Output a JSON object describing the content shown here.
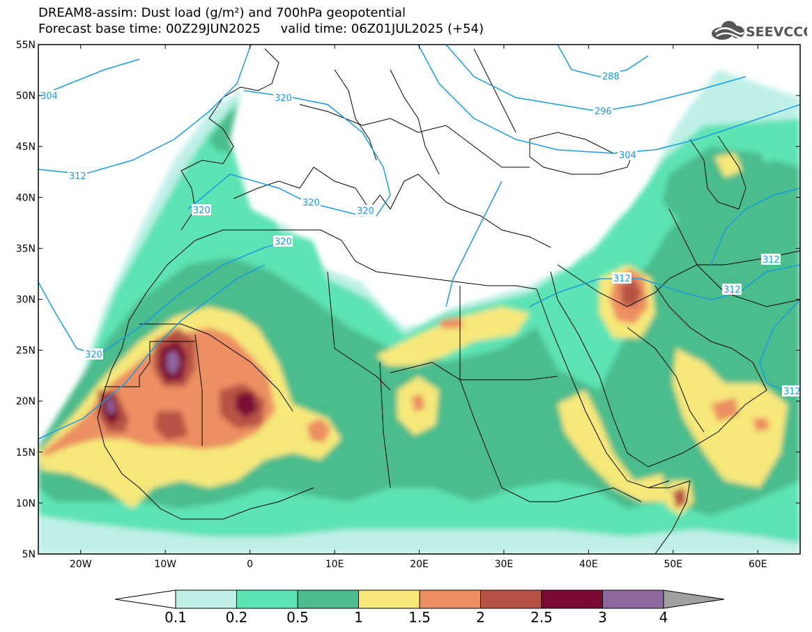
{
  "header": {
    "title_line1": "DREAM8-assim: Dust load (g/m²) and 700hPa geopotential",
    "title_line2": "Forecast base time: 00Z29JUN2025     valid time: 06Z01JUL2025 (+54)",
    "logo_text": "SEEVCCC"
  },
  "map": {
    "lat_labels": [
      "55N",
      "50N",
      "45N",
      "40N",
      "35N",
      "30N",
      "25N",
      "20N",
      "15N",
      "10N",
      "5N"
    ],
    "lon_labels": [
      "20W",
      "10W",
      "0",
      "10E",
      "20E",
      "30E",
      "40E",
      "50E",
      "60E"
    ],
    "lat_range": [
      5,
      55
    ],
    "lon_range": [
      -25,
      65
    ],
    "contour_color": "#1a9be0",
    "contour_labels": [
      "304",
      "320",
      "288",
      "296",
      "312",
      "320",
      "304",
      "320",
      "320",
      "320",
      "312",
      "312",
      "312",
      "320",
      "312"
    ]
  },
  "colorbar": {
    "labels": [
      "0.1",
      "0.2",
      "0.5",
      "1",
      "1.5",
      "2",
      "2.5",
      "3",
      "4"
    ],
    "colors": [
      "#bff0e8",
      "#5de3b4",
      "#4cbc8c",
      "#f7e87a",
      "#ec8f62",
      "#b75344",
      "#7c0a35",
      "#8e68a0"
    ],
    "under_color": "#ffffff",
    "over_color": "#a0a0a0"
  },
  "colors": {
    "level_01": "#bff0e8",
    "level_02": "#5de3b4",
    "level_05": "#4cbc8c",
    "level_1": "#f7e87a",
    "level_15": "#ec8f62",
    "level_2": "#b75344",
    "level_25": "#7c0a35",
    "level_3": "#8e68a0"
  }
}
